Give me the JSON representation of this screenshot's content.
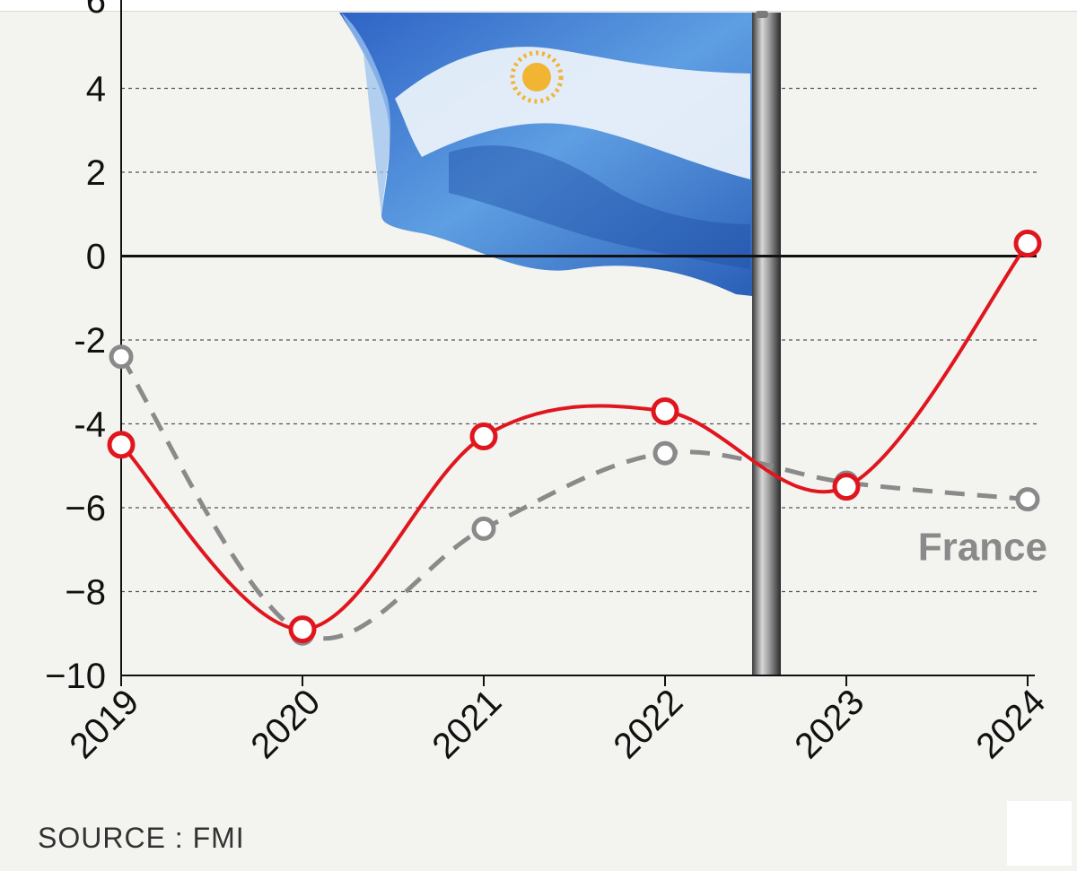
{
  "source": "SOURCE : FMI",
  "chart_data": {
    "type": "line",
    "x": [
      "2019",
      "2020",
      "2021",
      "2022",
      "2023",
      "2024"
    ],
    "ylim": [
      -10,
      6
    ],
    "yticks": [
      4,
      2,
      0,
      -2,
      -4,
      -6,
      -8,
      -10
    ],
    "ytick_labels": [
      "4",
      "2",
      "0",
      "-2",
      "-4",
      "−6",
      "−8",
      "−10"
    ],
    "grid": true,
    "series": [
      {
        "color": "#e0161e",
        "style": "solid",
        "values": [
          -4.5,
          -8.9,
          -4.3,
          -3.7,
          -5.5,
          0.3
        ]
      },
      {
        "name": "France",
        "color": "#8a8a8a",
        "style": "dashed",
        "values": [
          -2.4,
          -9.0,
          -6.5,
          -4.7,
          -5.4,
          -5.8
        ]
      }
    ]
  }
}
